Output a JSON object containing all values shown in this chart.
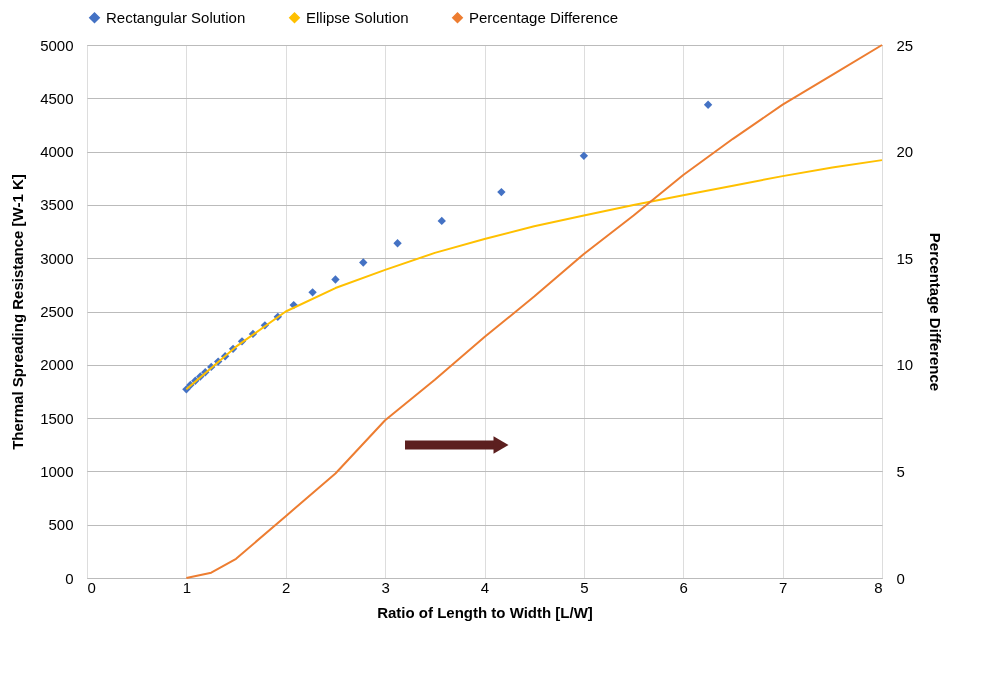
{
  "chart_data": {
    "type": "line",
    "xlabel": "Ratio of Length to Width [L/W]",
    "ylabel": "Thermal Spreading Resistance [W-1 K]",
    "y2label": "Percentage Difference",
    "xlim": [
      0,
      8
    ],
    "xticks": [
      0,
      1,
      2,
      3,
      4,
      5,
      6,
      7,
      8
    ],
    "ylim": [
      0,
      5000
    ],
    "yticks": [
      0,
      500,
      1000,
      1500,
      2000,
      2500,
      3000,
      3500,
      4000,
      4500,
      5000
    ],
    "y2lim": [
      0,
      25
    ],
    "y2ticks": [
      0,
      5,
      10,
      15,
      20,
      25
    ],
    "grid": true,
    "legend": "top",
    "series": [
      {
        "name": "Rectangular Solution",
        "type": "scatter",
        "marker": "diamond",
        "color": "#4472c4",
        "x": [
          6.25,
          5,
          4.17,
          3.57,
          3.125,
          2.78,
          2.5,
          2.27,
          2.08,
          1.92,
          1.79,
          1.67,
          1.56,
          1.47,
          1.39,
          1.32,
          1.25,
          1.19,
          1.14,
          1.09,
          1.04,
          1.0
        ],
        "values": [
          4440,
          3960,
          3620,
          3350,
          3140,
          2960,
          2800,
          2680,
          2560,
          2450,
          2370,
          2290,
          2220,
          2150,
          2080,
          2030,
          1980,
          1930,
          1890,
          1850,
          1810,
          1770
        ]
      },
      {
        "name": "Ellipse Solution",
        "marker": "none",
        "color": "#ffc000",
        "x": [
          1,
          1.5,
          2,
          2.5,
          3,
          3.5,
          4,
          4.5,
          5,
          5.5,
          6,
          6.5,
          7,
          7.5,
          8
        ],
        "values": [
          1770,
          2170,
          2500,
          2720,
          2890,
          3050,
          3180,
          3300,
          3400,
          3500,
          3590,
          3680,
          3770,
          3850,
          3920
        ]
      },
      {
        "name": "Percentage Difference",
        "marker": "none",
        "axis": "y2",
        "color": "#ed7d31",
        "x": [
          1,
          1.25,
          1.5,
          2,
          2.5,
          3,
          3.5,
          4,
          4.5,
          5,
          5.5,
          6,
          6.5,
          7,
          7.5,
          8
        ],
        "values": [
          0,
          0.25,
          0.9,
          2.9,
          4.9,
          7.4,
          9.3,
          11.3,
          13.2,
          15.2,
          17.0,
          18.9,
          20.6,
          22.2,
          23.6,
          25.0
        ]
      }
    ]
  }
}
